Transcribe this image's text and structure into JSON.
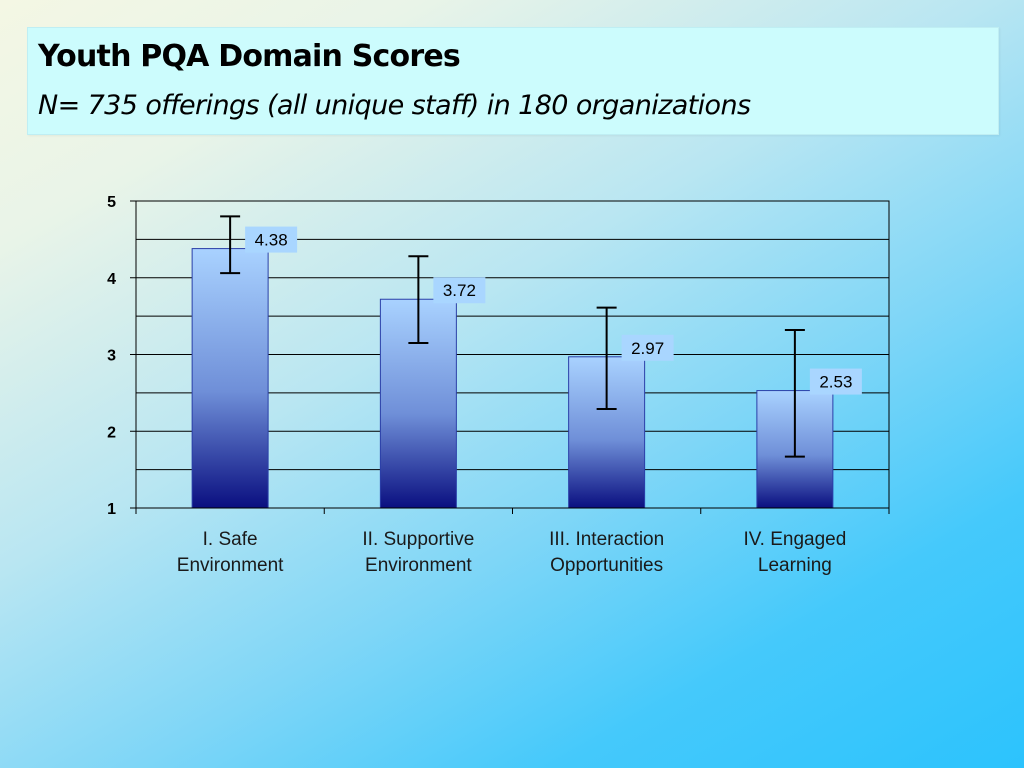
{
  "header": {
    "title": "Youth PQA Domain Scores",
    "subtitle": "N= 735 offerings (all unique staff) in 180 organizations"
  },
  "colors": {
    "bar_top": "#a9d2ff",
    "bar_bottom": "#0a0f80",
    "label_box": "#a9d6ff",
    "error_bar": "#000000"
  },
  "chart_data": {
    "type": "bar",
    "categories": [
      [
        "I. Safe",
        "Environment"
      ],
      [
        "II. Supportive",
        "Environment"
      ],
      [
        "III. Interaction",
        "Opportunities"
      ],
      [
        "IV. Engaged",
        "Learning"
      ]
    ],
    "values": [
      4.38,
      3.72,
      2.97,
      2.53
    ],
    "data_labels": [
      "4.38",
      "3.72",
      "2.97",
      "2.53"
    ],
    "error_bars": [
      {
        "low": 4.06,
        "high": 4.8
      },
      {
        "low": 3.15,
        "high": 4.28
      },
      {
        "low": 2.29,
        "high": 3.61
      },
      {
        "low": 1.67,
        "high": 3.32
      }
    ],
    "ylim": [
      1,
      5
    ],
    "y_ticks": [
      1,
      2,
      3,
      4,
      5
    ],
    "y_tick_labels": [
      "1",
      "2",
      "3",
      "4",
      "5"
    ],
    "gridlines_major": true,
    "gridlines_minor": true,
    "xlabel": "",
    "ylabel": ""
  }
}
